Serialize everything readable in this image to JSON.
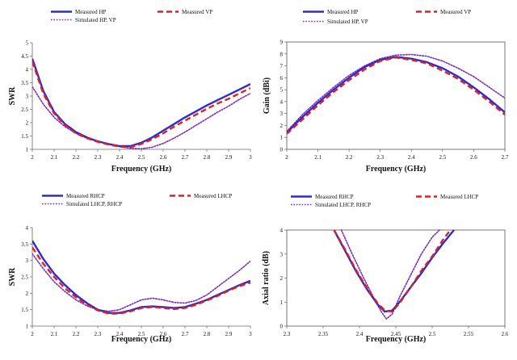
{
  "chart_data": [
    {
      "type": "line",
      "xlabel": "Frequency (GHz)",
      "ylabel": "SWR",
      "xlim": [
        2,
        3
      ],
      "ylim": [
        1,
        5
      ],
      "xticks": [
        "2",
        "2.1",
        "2.2",
        "2.3",
        "2.4",
        "2.5",
        "2.6",
        "2.7",
        "2.8",
        "2.9",
        "3"
      ],
      "yticks": [
        "1",
        "1.5",
        "2",
        "2.5",
        "3",
        "3.5",
        "4",
        "4.5",
        "5"
      ],
      "grid": false,
      "legend_position": "top",
      "series": [
        {
          "name": "Measured HP",
          "style": "solid",
          "color": "#2b2bd0",
          "x": [
            2,
            2.05,
            2.1,
            2.15,
            2.2,
            2.25,
            2.3,
            2.35,
            2.4,
            2.45,
            2.5,
            2.55,
            2.6,
            2.65,
            2.7,
            2.75,
            2.8,
            2.85,
            2.9,
            2.95,
            3
          ],
          "y": [
            4.4,
            3.2,
            2.4,
            1.95,
            1.65,
            1.45,
            1.3,
            1.2,
            1.12,
            1.12,
            1.25,
            1.45,
            1.7,
            1.95,
            2.2,
            2.42,
            2.65,
            2.85,
            3.05,
            3.25,
            3.45
          ]
        },
        {
          "name": "Measured VP",
          "style": "dashed",
          "color": "#e02020",
          "x": [
            2,
            2.05,
            2.1,
            2.15,
            2.2,
            2.25,
            2.3,
            2.35,
            2.4,
            2.45,
            2.5,
            2.55,
            2.6,
            2.65,
            2.7,
            2.75,
            2.8,
            2.85,
            2.9,
            2.95,
            3
          ],
          "y": [
            4.3,
            3.1,
            2.35,
            1.9,
            1.6,
            1.42,
            1.28,
            1.18,
            1.1,
            1.08,
            1.2,
            1.38,
            1.6,
            1.85,
            2.08,
            2.3,
            2.52,
            2.72,
            2.9,
            3.1,
            3.3
          ]
        },
        {
          "name": "Simulated HP, VP",
          "style": "dotted",
          "color": "#7a2bb8",
          "x": [
            2,
            2.05,
            2.1,
            2.15,
            2.2,
            2.25,
            2.3,
            2.35,
            2.4,
            2.45,
            2.5,
            2.55,
            2.6,
            2.65,
            2.7,
            2.75,
            2.8,
            2.85,
            2.9,
            2.95,
            3
          ],
          "y": [
            3.35,
            2.7,
            2.2,
            1.85,
            1.6,
            1.42,
            1.3,
            1.2,
            1.1,
            1.04,
            1.02,
            1.08,
            1.22,
            1.42,
            1.65,
            1.9,
            2.15,
            2.4,
            2.62,
            2.88,
            3.1
          ]
        }
      ]
    },
    {
      "type": "line",
      "xlabel": "Frequency (GHz)",
      "ylabel": "Gain (dBi)",
      "xlim": [
        2,
        2.7
      ],
      "ylim": [
        0,
        9
      ],
      "xticks": [
        "2",
        "2.1",
        "2.2",
        "2.3",
        "2.4",
        "2.5",
        "2.6",
        "2.7"
      ],
      "yticks": [
        "0",
        "1",
        "2",
        "3",
        "4",
        "5",
        "6",
        "7",
        "8",
        "9"
      ],
      "grid": false,
      "legend_position": "top",
      "series": [
        {
          "name": "Measured HP",
          "style": "solid",
          "color": "#2b2bd0",
          "x": [
            2,
            2.05,
            2.1,
            2.15,
            2.2,
            2.25,
            2.3,
            2.35,
            2.4,
            2.45,
            2.5,
            2.55,
            2.6,
            2.65,
            2.7
          ],
          "y": [
            1.4,
            2.7,
            3.9,
            5.0,
            6.0,
            6.9,
            7.5,
            7.75,
            7.6,
            7.3,
            6.8,
            6.1,
            5.2,
            4.2,
            3.1
          ]
        },
        {
          "name": "Measured VP",
          "style": "dashed",
          "color": "#e02020",
          "x": [
            2,
            2.05,
            2.1,
            2.15,
            2.2,
            2.25,
            2.3,
            2.35,
            2.4,
            2.45,
            2.5,
            2.55,
            2.6,
            2.65,
            2.7
          ],
          "y": [
            1.3,
            2.5,
            3.7,
            4.8,
            5.8,
            6.7,
            7.4,
            7.7,
            7.5,
            7.2,
            6.6,
            5.9,
            5.0,
            4.0,
            2.9
          ]
        },
        {
          "name": "Simulated HP, VP",
          "style": "dotted",
          "color": "#7a2bb8",
          "x": [
            2,
            2.05,
            2.1,
            2.15,
            2.2,
            2.25,
            2.3,
            2.35,
            2.4,
            2.45,
            2.5,
            2.55,
            2.6,
            2.65,
            2.7
          ],
          "y": [
            1.5,
            2.9,
            4.1,
            5.2,
            6.2,
            7.0,
            7.6,
            7.9,
            7.95,
            7.8,
            7.4,
            6.8,
            6.1,
            5.2,
            4.3
          ]
        }
      ]
    },
    {
      "type": "line",
      "xlabel": "Frequency (GHz)",
      "ylabel": "SWR",
      "xlim": [
        2,
        3
      ],
      "ylim": [
        1,
        4
      ],
      "xticks": [
        "2",
        "2.1",
        "2.2",
        "2.3",
        "2.4",
        "2.5",
        "2.6",
        "2.7",
        "2.8",
        "2.9",
        "3"
      ],
      "yticks": [
        "1",
        "1.5",
        "2",
        "2.5",
        "3",
        "3.5",
        "4"
      ],
      "grid": false,
      "legend_position": "top",
      "series": [
        {
          "name": "Measured RHCP",
          "style": "solid",
          "color": "#2b2bd0",
          "x": [
            2,
            2.05,
            2.1,
            2.15,
            2.2,
            2.25,
            2.3,
            2.35,
            2.4,
            2.45,
            2.5,
            2.55,
            2.6,
            2.65,
            2.7,
            2.75,
            2.8,
            2.85,
            2.9,
            2.95,
            3
          ],
          "y": [
            3.6,
            3.05,
            2.6,
            2.25,
            1.95,
            1.7,
            1.5,
            1.4,
            1.4,
            1.48,
            1.58,
            1.6,
            1.58,
            1.55,
            1.58,
            1.68,
            1.8,
            1.95,
            2.1,
            2.25,
            2.38
          ]
        },
        {
          "name": "Measured LHCP",
          "style": "dashed",
          "color": "#e02020",
          "x": [
            2,
            2.05,
            2.1,
            2.15,
            2.2,
            2.25,
            2.3,
            2.35,
            2.4,
            2.45,
            2.5,
            2.55,
            2.6,
            2.65,
            2.7,
            2.75,
            2.8,
            2.85,
            2.9,
            2.95,
            3
          ],
          "y": [
            3.4,
            2.9,
            2.5,
            2.15,
            1.88,
            1.65,
            1.48,
            1.38,
            1.38,
            1.45,
            1.55,
            1.58,
            1.55,
            1.52,
            1.55,
            1.65,
            1.78,
            1.92,
            2.08,
            2.22,
            2.32
          ]
        },
        {
          "name": "Simulated LHCP, RHCP",
          "style": "dotted",
          "color": "#7a2bb8",
          "x": [
            2,
            2.05,
            2.1,
            2.15,
            2.2,
            2.25,
            2.3,
            2.35,
            2.4,
            2.45,
            2.5,
            2.55,
            2.6,
            2.65,
            2.7,
            2.75,
            2.8,
            2.85,
            2.9,
            2.95,
            3
          ],
          "y": [
            3.2,
            2.75,
            2.35,
            2.05,
            1.8,
            1.62,
            1.5,
            1.45,
            1.5,
            1.65,
            1.8,
            1.85,
            1.8,
            1.72,
            1.7,
            1.78,
            1.95,
            2.2,
            2.45,
            2.7,
            2.98
          ]
        }
      ]
    },
    {
      "type": "line",
      "xlabel": "Frequency (GHz)",
      "ylabel": "Axial ratio (dB)",
      "xlim": [
        2.3,
        2.6
      ],
      "ylim": [
        0,
        4
      ],
      "xticks": [
        "2.3",
        "2.35",
        "2.4",
        "2.45",
        "2.5",
        "2.55",
        "2.6"
      ],
      "yticks": [
        "0",
        "1",
        "2",
        "3",
        "4"
      ],
      "grid": false,
      "legend_position": "top",
      "series": [
        {
          "name": "Measured RHCP",
          "style": "solid",
          "color": "#2b2bd0",
          "x": [
            2.365,
            2.38,
            2.395,
            2.41,
            2.425,
            2.435,
            2.445,
            2.455,
            2.47,
            2.485,
            2.5,
            2.515,
            2.53
          ],
          "y": [
            4,
            3.15,
            2.3,
            1.55,
            0.9,
            0.6,
            0.65,
            1.0,
            1.6,
            2.2,
            2.85,
            3.45,
            4
          ]
        },
        {
          "name": "Measured LHCP",
          "style": "dashed",
          "color": "#e02020",
          "x": [
            2.365,
            2.38,
            2.395,
            2.41,
            2.425,
            2.435,
            2.445,
            2.455,
            2.47,
            2.485,
            2.5,
            2.515,
            2.525
          ],
          "y": [
            4,
            3.2,
            2.35,
            1.6,
            0.95,
            0.65,
            0.6,
            0.95,
            1.6,
            2.3,
            2.9,
            3.6,
            4
          ]
        },
        {
          "name": "Simulated LHCP, RHCP",
          "style": "dotted",
          "color": "#7a2bb8",
          "x": [
            2.375,
            2.39,
            2.405,
            2.42,
            2.43,
            2.437,
            2.445,
            2.455,
            2.47,
            2.485,
            2.5,
            2.51
          ],
          "y": [
            4,
            3.0,
            2.05,
            1.15,
            0.6,
            0.3,
            0.5,
            1.2,
            2.1,
            3.0,
            3.7,
            4
          ]
        }
      ]
    }
  ]
}
